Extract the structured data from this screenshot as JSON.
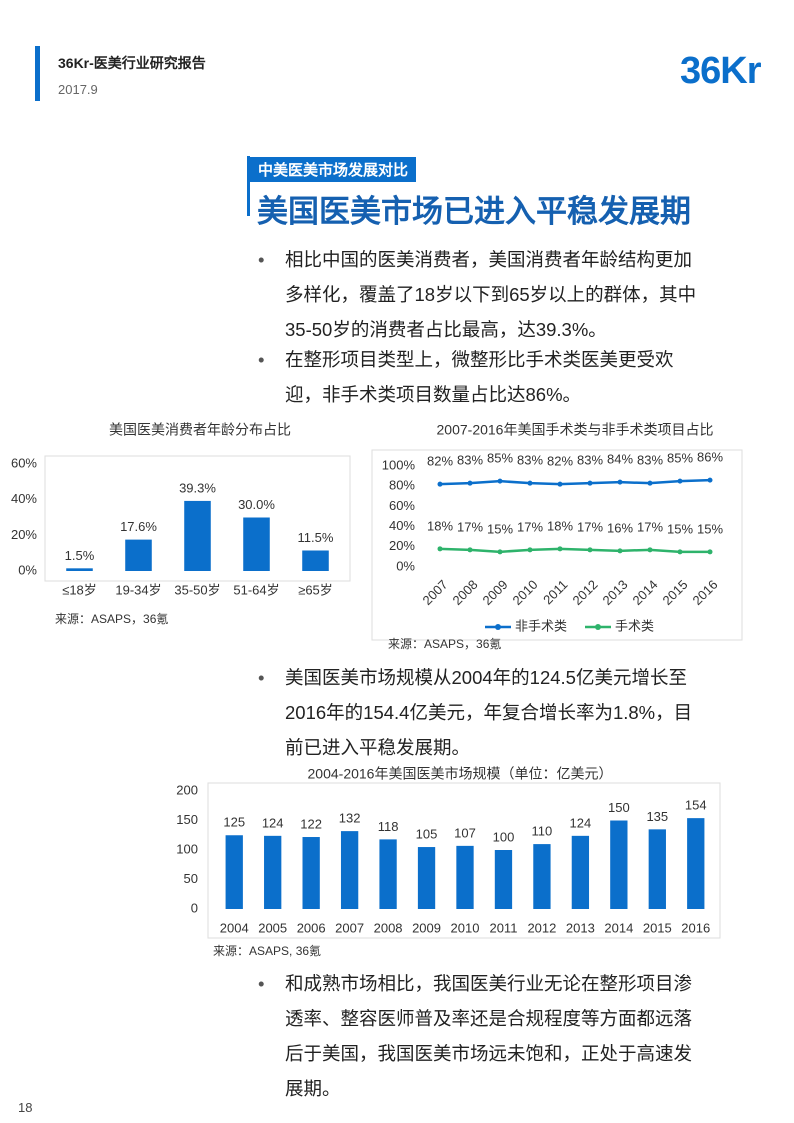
{
  "header": {
    "title": "36Kr-医美行业研究报告",
    "date": "2017.9",
    "logo": "36Kr"
  },
  "section": {
    "tag": "中美医美市场发展对比",
    "heading": "美国医美市场已进入平稳发展期"
  },
  "bullets": [
    "相比中国的医美消费者，美国消费者年龄结构更加多样化，覆盖了18岁以下到65岁以上的群体，其中35-50岁的消费者占比最高，达39.3%。",
    "在整形项目类型上，微整形比手术类医美更受欢迎，非手术类项目数量占比达86%。",
    "美国医美市场规模从2004年的124.5亿美元增长至2016年的154.4亿美元，年复合增长率为1.8%，目前已进入平稳发展期。",
    "和成熟市场相比，我国医美行业无论在整形项目渗透率、整容医师普及率还是合规程度等方面都远落后于美国，我国医美市场远未饱和，正处于高速发展期。"
  ],
  "page_number": "18",
  "chart_data": [
    {
      "type": "bar",
      "title": "美国医美消费者年龄分布占比",
      "source": "来源：ASAPS，36氪",
      "categories": [
        "≤18岁",
        "19-34岁",
        "35-50岁",
        "51-64岁",
        "≥65岁"
      ],
      "values": [
        1.5,
        17.6,
        39.3,
        30.0,
        11.5
      ],
      "value_labels": [
        "1.5%",
        "17.6%",
        "39.3%",
        "30.0%",
        "11.5%"
      ],
      "color": "#0b6fcb",
      "ylim": [
        0,
        60
      ],
      "yticks": [
        {
          "value": 0,
          "label": "0%"
        },
        {
          "value": 20,
          "label": "20%"
        },
        {
          "value": 40,
          "label": "40%"
        },
        {
          "value": 60,
          "label": "60%"
        }
      ],
      "grid": false
    },
    {
      "type": "line",
      "title": "2007-2016年美国手术类与非手术类项目占比",
      "source": "来源：ASAPS，36氪",
      "categories": [
        "2007",
        "2008",
        "2009",
        "2010",
        "2011",
        "2012",
        "2013",
        "2014",
        "2015",
        "2016"
      ],
      "series": [
        {
          "name": "非手术类",
          "color": "#0b6fcb",
          "values": [
            82,
            83,
            85,
            83,
            82,
            83,
            84,
            83,
            85,
            86
          ],
          "value_labels": [
            "82%",
            "83%",
            "85%",
            "83%",
            "82%",
            "83%",
            "84%",
            "83%",
            "85%",
            "86%"
          ]
        },
        {
          "name": "手术类",
          "color": "#2eb36b",
          "values": [
            18,
            17,
            15,
            17,
            18,
            17,
            16,
            17,
            15,
            15
          ],
          "value_labels": [
            "18%",
            "17%",
            "15%",
            "17%",
            "18%",
            "17%",
            "16%",
            "17%",
            "15%",
            "15%"
          ]
        }
      ],
      "ylim": [
        0,
        100
      ],
      "yticks": [
        {
          "value": 0,
          "label": "0%"
        },
        {
          "value": 20,
          "label": "20%"
        },
        {
          "value": 40,
          "label": "40%"
        },
        {
          "value": 60,
          "label": "60%"
        },
        {
          "value": 80,
          "label": "80%"
        },
        {
          "value": 100,
          "label": "100%"
        }
      ],
      "grid": false,
      "legend": "bottom"
    },
    {
      "type": "bar",
      "title": "2004-2016年美国医美市场规模（单位：亿美元）",
      "source": "来源：ASAPS, 36氪",
      "categories": [
        "2004",
        "2005",
        "2006",
        "2007",
        "2008",
        "2009",
        "2010",
        "2011",
        "2012",
        "2013",
        "2014",
        "2015",
        "2016"
      ],
      "values": [
        125,
        124,
        122,
        132,
        118,
        105,
        107,
        100,
        110,
        124,
        150,
        135,
        154
      ],
      "color": "#0b6fcb",
      "ylim": [
        0,
        200
      ],
      "yticks": [
        0,
        50,
        100,
        150,
        200
      ],
      "grid": false
    }
  ]
}
